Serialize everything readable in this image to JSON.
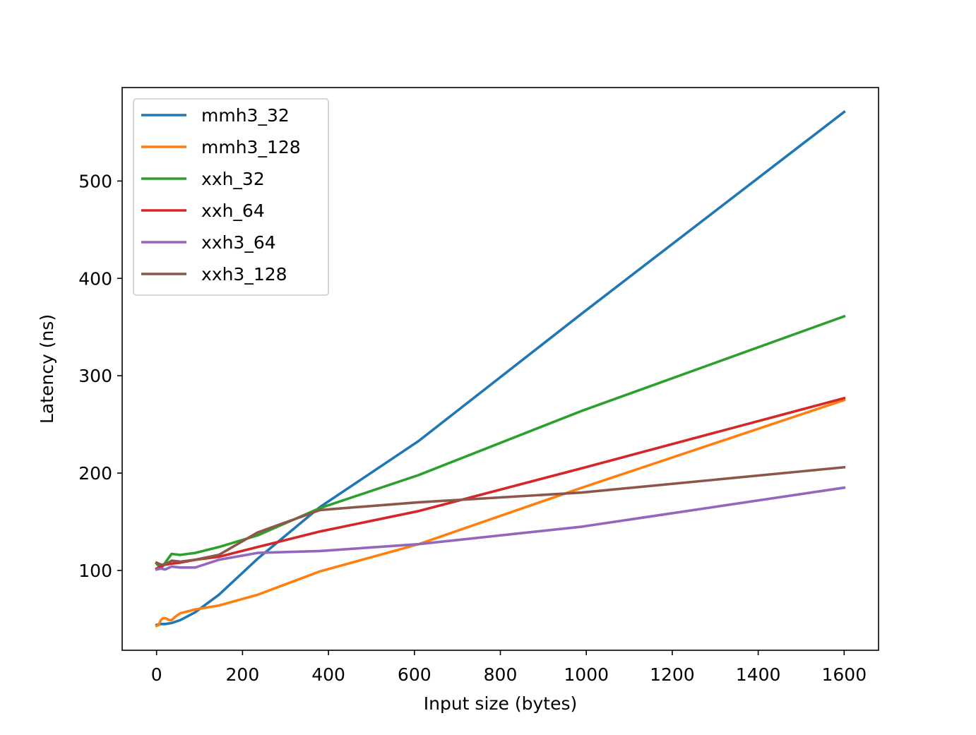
{
  "chart_data": {
    "type": "line",
    "title": "",
    "xlabel": "Input size (bytes)",
    "ylabel": "Latency (ns)",
    "xlim": [
      -80,
      1680
    ],
    "ylim": [
      18,
      596
    ],
    "xticks": [
      0,
      200,
      400,
      600,
      800,
      1000,
      1200,
      1400,
      1600
    ],
    "xtick_labels": [
      "0",
      "200",
      "400",
      "600",
      "800",
      "1000",
      "1200",
      "1400",
      "1600"
    ],
    "yticks": [
      100,
      200,
      300,
      400,
      500
    ],
    "ytick_labels": [
      "100",
      "200",
      "300",
      "400",
      "500"
    ],
    "grid": false,
    "legend_position": "upper-left",
    "series": [
      {
        "name": "mmh3_32",
        "color": "#1f77b4",
        "points": [
          [
            0,
            44
          ],
          [
            10,
            45
          ],
          [
            20,
            45
          ],
          [
            35,
            46
          ],
          [
            55,
            49
          ],
          [
            90,
            57
          ],
          [
            145,
            75
          ],
          [
            235,
            112
          ],
          [
            380,
            165
          ],
          [
            610,
            233
          ],
          [
            990,
            364
          ],
          [
            1600,
            571
          ]
        ]
      },
      {
        "name": "mmh3_128",
        "color": "#ff7f0e",
        "points": [
          [
            0,
            43
          ],
          [
            5,
            44
          ],
          [
            10,
            49
          ],
          [
            15,
            51
          ],
          [
            20,
            51
          ],
          [
            25,
            50
          ],
          [
            30,
            49
          ],
          [
            35,
            49
          ],
          [
            45,
            53
          ],
          [
            55,
            56
          ],
          [
            90,
            60
          ],
          [
            145,
            64
          ],
          [
            235,
            75
          ],
          [
            380,
            99
          ],
          [
            610,
            127
          ],
          [
            990,
            185
          ],
          [
            1600,
            275
          ]
        ]
      },
      {
        "name": "xxh_32",
        "color": "#2ca02c",
        "points": [
          [
            0,
            107
          ],
          [
            10,
            102
          ],
          [
            20,
            108
          ],
          [
            35,
            117
          ],
          [
            55,
            116
          ],
          [
            90,
            118
          ],
          [
            145,
            124
          ],
          [
            235,
            136
          ],
          [
            380,
            164
          ],
          [
            610,
            198
          ],
          [
            990,
            264
          ],
          [
            1600,
            361
          ]
        ]
      },
      {
        "name": "xxh_64",
        "color": "#d62728",
        "points": [
          [
            0,
            102
          ],
          [
            10,
            104
          ],
          [
            20,
            106
          ],
          [
            35,
            107
          ],
          [
            55,
            108
          ],
          [
            90,
            111
          ],
          [
            145,
            114
          ],
          [
            235,
            124
          ],
          [
            380,
            140
          ],
          [
            610,
            161
          ],
          [
            990,
            205
          ],
          [
            1600,
            277
          ]
        ]
      },
      {
        "name": "xxh3_64",
        "color": "#9467bd",
        "points": [
          [
            0,
            101
          ],
          [
            10,
            102
          ],
          [
            20,
            101
          ],
          [
            35,
            104
          ],
          [
            55,
            103
          ],
          [
            90,
            103
          ],
          [
            145,
            111
          ],
          [
            235,
            118
          ],
          [
            380,
            120
          ],
          [
            610,
            127
          ],
          [
            990,
            145
          ],
          [
            1600,
            185
          ]
        ]
      },
      {
        "name": "xxh3_128",
        "color": "#8c564b",
        "points": [
          [
            0,
            108
          ],
          [
            10,
            106
          ],
          [
            20,
            106
          ],
          [
            35,
            110
          ],
          [
            55,
            109
          ],
          [
            90,
            111
          ],
          [
            145,
            116
          ],
          [
            235,
            139
          ],
          [
            380,
            162
          ],
          [
            610,
            170
          ],
          [
            990,
            180
          ],
          [
            1600,
            206
          ]
        ]
      }
    ]
  }
}
